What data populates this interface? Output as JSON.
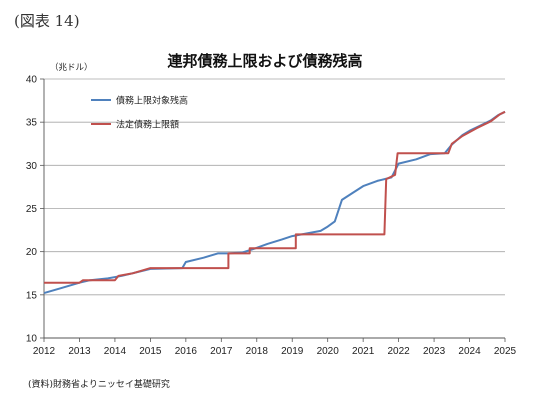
{
  "figure_label": "(図表 14)",
  "source_note": "(資料)財務省よりニッセイ基礎研究",
  "chart_data": {
    "type": "line",
    "title": "連邦債務上限および債務残高",
    "xlabel": "",
    "ylabel": "（兆ドル）",
    "xlim": [
      2012,
      2025
    ],
    "ylim": [
      10,
      40
    ],
    "x_ticks": [
      2012,
      2013,
      2014,
      2015,
      2016,
      2017,
      2018,
      2019,
      2020,
      2021,
      2022,
      2023,
      2024,
      2025
    ],
    "y_ticks": [
      10,
      15,
      20,
      25,
      30,
      35,
      40
    ],
    "grid": "horizontal",
    "legend_position": "top-left",
    "series": [
      {
        "name": "債務上限対象残高",
        "color": "#4f81bd",
        "points": [
          [
            2012.0,
            15.2
          ],
          [
            2012.5,
            15.8
          ],
          [
            2013.0,
            16.4
          ],
          [
            2013.3,
            16.7
          ],
          [
            2013.8,
            16.9
          ],
          [
            2014.2,
            17.2
          ],
          [
            2014.6,
            17.6
          ],
          [
            2015.0,
            18.0
          ],
          [
            2015.9,
            18.1
          ],
          [
            2016.0,
            18.8
          ],
          [
            2016.5,
            19.3
          ],
          [
            2016.9,
            19.8
          ],
          [
            2017.2,
            19.8
          ],
          [
            2017.6,
            19.9
          ],
          [
            2017.9,
            20.3
          ],
          [
            2018.3,
            20.9
          ],
          [
            2018.7,
            21.4
          ],
          [
            2019.0,
            21.8
          ],
          [
            2019.4,
            22.1
          ],
          [
            2019.8,
            22.4
          ],
          [
            2020.0,
            22.9
          ],
          [
            2020.2,
            23.5
          ],
          [
            2020.4,
            26.0
          ],
          [
            2020.7,
            26.8
          ],
          [
            2021.0,
            27.6
          ],
          [
            2021.4,
            28.2
          ],
          [
            2021.8,
            28.6
          ],
          [
            2022.0,
            30.2
          ],
          [
            2022.5,
            30.7
          ],
          [
            2022.9,
            31.3
          ],
          [
            2023.3,
            31.4
          ],
          [
            2023.5,
            32.4
          ],
          [
            2023.8,
            33.5
          ],
          [
            2024.0,
            34.0
          ],
          [
            2024.3,
            34.6
          ],
          [
            2024.6,
            35.2
          ],
          [
            2024.8,
            35.8
          ],
          [
            2025.0,
            36.2
          ]
        ]
      },
      {
        "name": "法定債務上限額",
        "color": "#c0504d",
        "points": [
          [
            2012.0,
            16.4
          ],
          [
            2013.0,
            16.4
          ],
          [
            2013.1,
            16.7
          ],
          [
            2014.0,
            16.7
          ],
          [
            2014.1,
            17.2
          ],
          [
            2014.5,
            17.5
          ],
          [
            2015.0,
            18.1
          ],
          [
            2015.9,
            18.1
          ],
          [
            2016.0,
            18.1
          ],
          [
            2017.2,
            18.1
          ],
          [
            2017.2,
            19.8
          ],
          [
            2017.8,
            19.8
          ],
          [
            2017.8,
            20.4
          ],
          [
            2019.1,
            20.4
          ],
          [
            2019.1,
            22.0
          ],
          [
            2021.6,
            22.0
          ],
          [
            2021.65,
            28.4
          ],
          [
            2021.9,
            28.9
          ],
          [
            2021.97,
            31.4
          ],
          [
            2023.4,
            31.4
          ],
          [
            2023.5,
            32.5
          ],
          [
            2023.8,
            33.4
          ],
          [
            2024.2,
            34.3
          ],
          [
            2024.6,
            35.1
          ],
          [
            2024.85,
            35.9
          ],
          [
            2025.0,
            36.2
          ]
        ]
      }
    ]
  }
}
